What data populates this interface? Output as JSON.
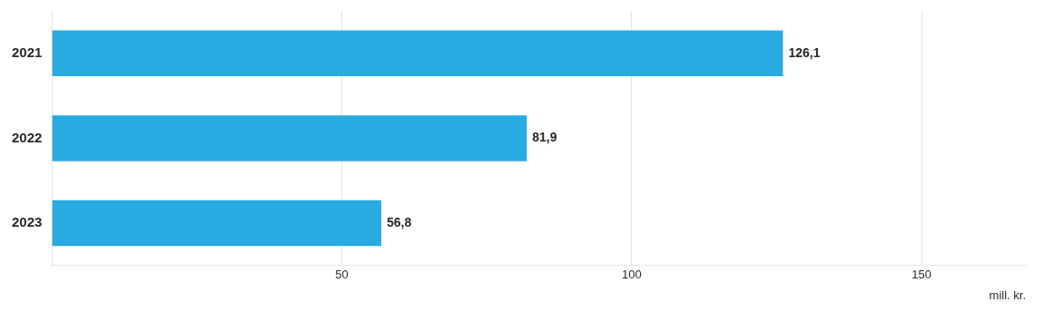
{
  "chart_data": {
    "type": "bar",
    "orientation": "horizontal",
    "categories": [
      "2021",
      "2022",
      "2023"
    ],
    "values": [
      126.1,
      81.9,
      56.8
    ],
    "value_labels": [
      "126,1",
      "81,9",
      "56,8"
    ],
    "data_labels": true,
    "color": "#29ABE2",
    "xlabel": "mill. kr.",
    "xlim": [
      0,
      168
    ],
    "xticks": [
      50,
      100,
      150
    ],
    "grid": true
  }
}
